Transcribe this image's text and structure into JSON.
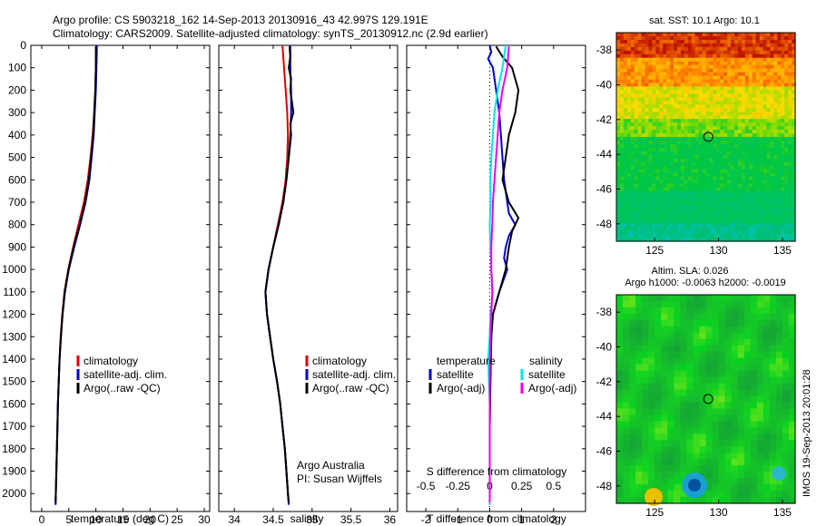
{
  "header": {
    "line1": "Argo profile: CS 5903218_162 14-Sep-2013 20130916_43 42.997S 129.191E",
    "line2": "Climatology: CARS2009. Satellite-adjusted climatology: synTS_20130912.nc (2.9d earlier)"
  },
  "colors": {
    "climatology": "#dd0000",
    "satellite": "#0000cc",
    "argo": "#000000",
    "cyan": "#00e5ee",
    "magenta": "#ee00ee"
  },
  "chart_data": [
    {
      "type": "line",
      "id": "temperature",
      "xlabel": "temperature (deg C)",
      "ylabel": "",
      "xlim": [
        -2,
        31
      ],
      "ylim": [
        2080,
        0
      ],
      "xticks": [
        0,
        5,
        10,
        15,
        20,
        25,
        30
      ],
      "yticks": [
        0,
        100,
        200,
        300,
        400,
        500,
        600,
        700,
        800,
        900,
        1000,
        1100,
        1200,
        1300,
        1400,
        1500,
        1600,
        1700,
        1800,
        1900,
        2000
      ],
      "legend": [
        "climatology",
        "satellite-adj. clim.",
        "Argo(..raw -QC)"
      ],
      "series": [
        {
          "name": "climatology",
          "color": "#dd0000",
          "points": [
            [
              10.1,
              0
            ],
            [
              10.0,
              100
            ],
            [
              9.9,
              200
            ],
            [
              9.7,
              300
            ],
            [
              9.4,
              400
            ],
            [
              9.0,
              500
            ],
            [
              8.5,
              600
            ],
            [
              7.8,
              700
            ],
            [
              6.8,
              800
            ],
            [
              5.8,
              900
            ],
            [
              4.9,
              1000
            ],
            [
              4.2,
              1100
            ],
            [
              3.8,
              1200
            ],
            [
              3.5,
              1300
            ],
            [
              3.3,
              1400
            ],
            [
              3.15,
              1500
            ],
            [
              3.0,
              1600
            ],
            [
              2.9,
              1700
            ],
            [
              2.8,
              1800
            ],
            [
              2.7,
              1900
            ],
            [
              2.6,
              2000
            ],
            [
              2.55,
              2050
            ]
          ]
        },
        {
          "name": "satellite-adj. clim.",
          "color": "#0000cc",
          "points": [
            [
              10.2,
              0
            ],
            [
              10.1,
              100
            ],
            [
              10.0,
              200
            ],
            [
              9.8,
              300
            ],
            [
              9.6,
              400
            ],
            [
              9.2,
              500
            ],
            [
              8.8,
              600
            ],
            [
              8.1,
              700
            ],
            [
              7.1,
              800
            ],
            [
              6.0,
              900
            ],
            [
              5.0,
              1000
            ],
            [
              4.3,
              1100
            ],
            [
              3.85,
              1200
            ],
            [
              3.55,
              1300
            ],
            [
              3.3,
              1400
            ],
            [
              3.15,
              1500
            ],
            [
              3.0,
              1600
            ],
            [
              2.9,
              1700
            ],
            [
              2.8,
              1800
            ],
            [
              2.7,
              1900
            ],
            [
              2.6,
              2000
            ],
            [
              2.55,
              2050
            ]
          ]
        },
        {
          "name": "Argo(..raw -QC)",
          "color": "#000000",
          "points": [
            [
              10.0,
              5
            ],
            [
              10.0,
              100
            ],
            [
              9.9,
              200
            ],
            [
              9.7,
              300
            ],
            [
              9.5,
              400
            ],
            [
              9.1,
              500
            ],
            [
              8.7,
              600
            ],
            [
              8.0,
              700
            ],
            [
              7.0,
              800
            ],
            [
              5.9,
              900
            ],
            [
              4.95,
              1000
            ],
            [
              4.25,
              1100
            ],
            [
              3.85,
              1200
            ],
            [
              3.55,
              1300
            ],
            [
              3.3,
              1400
            ],
            [
              3.15,
              1500
            ],
            [
              3.0,
              1600
            ],
            [
              2.9,
              1700
            ],
            [
              2.8,
              1800
            ],
            [
              2.7,
              1900
            ],
            [
              2.6,
              2000
            ],
            [
              2.55,
              2040
            ]
          ]
        }
      ]
    },
    {
      "type": "line",
      "id": "salinity",
      "xlabel": "salinity",
      "ylabel": "",
      "xlim": [
        33.8,
        36.1
      ],
      "ylim": [
        2080,
        0
      ],
      "xticks": [
        34,
        34.5,
        35,
        35.5,
        36
      ],
      "legend": [
        "climatology",
        "satellite-adj. clim.",
        "Argo(..raw -QC)"
      ],
      "series": [
        {
          "name": "climatology",
          "color": "#dd0000",
          "points": [
            [
              34.62,
              0
            ],
            [
              34.64,
              100
            ],
            [
              34.66,
              200
            ],
            [
              34.68,
              300
            ],
            [
              34.69,
              400
            ],
            [
              34.68,
              500
            ],
            [
              34.66,
              600
            ],
            [
              34.62,
              700
            ],
            [
              34.56,
              800
            ],
            [
              34.5,
              900
            ],
            [
              34.44,
              1000
            ],
            [
              34.4,
              1100
            ],
            [
              34.42,
              1200
            ],
            [
              34.46,
              1300
            ],
            [
              34.5,
              1400
            ],
            [
              34.55,
              1500
            ],
            [
              34.59,
              1600
            ],
            [
              34.62,
              1700
            ],
            [
              34.65,
              1800
            ],
            [
              34.67,
              1900
            ],
            [
              34.69,
              2000
            ],
            [
              34.7,
              2050
            ]
          ]
        },
        {
          "name": "satellite-adj. clim.",
          "color": "#0000cc",
          "points": [
            [
              34.72,
              0
            ],
            [
              34.72,
              100
            ],
            [
              34.73,
              200
            ],
            [
              34.73,
              300
            ],
            [
              34.72,
              400
            ],
            [
              34.7,
              500
            ],
            [
              34.67,
              600
            ],
            [
              34.63,
              700
            ],
            [
              34.57,
              800
            ],
            [
              34.5,
              900
            ],
            [
              34.44,
              1000
            ],
            [
              34.4,
              1100
            ],
            [
              34.42,
              1200
            ],
            [
              34.46,
              1300
            ],
            [
              34.5,
              1400
            ],
            [
              34.55,
              1500
            ],
            [
              34.59,
              1600
            ],
            [
              34.62,
              1700
            ],
            [
              34.65,
              1800
            ],
            [
              34.67,
              1900
            ],
            [
              34.69,
              2000
            ],
            [
              34.7,
              2050
            ]
          ]
        },
        {
          "name": "Argo(..raw -QC)",
          "color": "#000000",
          "points": [
            [
              34.71,
              5
            ],
            [
              34.72,
              50
            ],
            [
              34.7,
              100
            ],
            [
              34.73,
              150
            ],
            [
              34.72,
              200
            ],
            [
              34.74,
              250
            ],
            [
              34.76,
              300
            ],
            [
              34.72,
              350
            ],
            [
              34.73,
              400
            ],
            [
              34.7,
              500
            ],
            [
              34.67,
              600
            ],
            [
              34.63,
              700
            ],
            [
              34.57,
              800
            ],
            [
              34.5,
              900
            ],
            [
              34.44,
              1000
            ],
            [
              34.4,
              1100
            ],
            [
              34.42,
              1200
            ],
            [
              34.46,
              1300
            ],
            [
              34.5,
              1400
            ],
            [
              34.55,
              1500
            ],
            [
              34.59,
              1600
            ],
            [
              34.62,
              1700
            ],
            [
              34.65,
              1800
            ],
            [
              34.67,
              1900
            ],
            [
              34.69,
              2000
            ],
            [
              34.7,
              2040
            ]
          ]
        }
      ]
    },
    {
      "type": "line",
      "id": "difference",
      "xlabel": "T difference from climatology",
      "xlabel2": "S difference from climatology",
      "xlim": [
        -2.6,
        3.0
      ],
      "ylim": [
        2080,
        0
      ],
      "xticks": [
        -2,
        -1,
        0,
        1,
        2
      ],
      "xticks2": [
        -0.5,
        -0.25,
        0,
        0.25,
        0.5
      ],
      "legend_left_title": "temperature",
      "legend_right_title": "salinity",
      "legend_left": [
        "satellite",
        "Argo(-adj)"
      ],
      "legend_right": [
        "satellite",
        "Argo(-adj)"
      ],
      "series": [
        {
          "name": "temperature satellite",
          "color": "#0000cc",
          "points": [
            [
              0.0,
              0
            ],
            [
              0.05,
              30
            ],
            [
              -0.05,
              60
            ],
            [
              0.1,
              100
            ],
            [
              0.2,
              200
            ],
            [
              0.3,
              300
            ],
            [
              0.35,
              400
            ],
            [
              0.4,
              500
            ],
            [
              0.45,
              600
            ],
            [
              0.55,
              700
            ],
            [
              0.6,
              750
            ],
            [
              0.8,
              800
            ],
            [
              0.6,
              850
            ],
            [
              0.5,
              900
            ],
            [
              0.45,
              950
            ],
            [
              0.55,
              1000
            ],
            [
              0.3,
              1100
            ],
            [
              0.1,
              1200
            ],
            [
              0.05,
              1300
            ],
            [
              0.02,
              1500
            ],
            [
              0.0,
              1700
            ],
            [
              0.0,
              2050
            ]
          ]
        },
        {
          "name": "temperature Argo(-adj)",
          "color": "#000000",
          "points": [
            [
              0.2,
              5
            ],
            [
              0.4,
              50
            ],
            [
              0.7,
              100
            ],
            [
              0.9,
              200
            ],
            [
              0.8,
              300
            ],
            [
              0.6,
              400
            ],
            [
              0.5,
              500
            ],
            [
              0.4,
              600
            ],
            [
              0.6,
              700
            ],
            [
              0.9,
              770
            ],
            [
              0.7,
              830
            ],
            [
              0.6,
              900
            ],
            [
              0.5,
              1000
            ],
            [
              0.3,
              1100
            ],
            [
              0.1,
              1200
            ],
            [
              0.05,
              1300
            ],
            [
              0.02,
              1500
            ],
            [
              0.0,
              1700
            ],
            [
              0.0,
              2040
            ]
          ]
        },
        {
          "name": "salinity satellite",
          "color": "#00e5ee",
          "points": [
            [
              0.5,
              0
            ],
            [
              0.4,
              100
            ],
            [
              0.25,
              200
            ],
            [
              0.15,
              300
            ],
            [
              0.1,
              400
            ],
            [
              0.05,
              500
            ],
            [
              0.02,
              600
            ],
            [
              0.03,
              700
            ],
            [
              0.0,
              800
            ],
            [
              0.02,
              900
            ],
            [
              0.05,
              1000
            ],
            [
              0.1,
              1100
            ],
            [
              0.02,
              1200
            ],
            [
              0.0,
              1300
            ],
            [
              -0.05,
              1400
            ],
            [
              0.0,
              1600
            ],
            [
              0.0,
              2050
            ]
          ]
        },
        {
          "name": "salinity Argo(-adj)",
          "color": "#ee00ee",
          "points": [
            [
              0.6,
              5
            ],
            [
              0.55,
              100
            ],
            [
              0.4,
              200
            ],
            [
              0.3,
              300
            ],
            [
              0.25,
              400
            ],
            [
              0.2,
              500
            ],
            [
              0.15,
              600
            ],
            [
              0.1,
              700
            ],
            [
              0.08,
              800
            ],
            [
              0.05,
              900
            ],
            [
              0.05,
              1000
            ],
            [
              0.08,
              1100
            ],
            [
              0.05,
              1200
            ],
            [
              0.02,
              1300
            ],
            [
              0.0,
              1500
            ],
            [
              0.0,
              2040
            ]
          ]
        }
      ]
    },
    {
      "type": "heatmap",
      "id": "sst",
      "title": "sat. SST: 10.1 Argo: 10.1",
      "xlim": [
        122,
        136
      ],
      "ylim": [
        -49,
        -37
      ],
      "xticks": [
        125,
        130,
        135
      ],
      "yticks": [
        -38,
        -40,
        -42,
        -44,
        -46,
        -48
      ],
      "marker": [
        129.191,
        -42.997
      ]
    },
    {
      "type": "heatmap",
      "id": "sla",
      "title": "Altim. SLA: 0.026",
      "subtitle": "Argo h1000: -0.0063 h2000: -0.0019",
      "xlim": [
        122,
        136
      ],
      "ylim": [
        -49,
        -37
      ],
      "xticks": [
        125,
        130,
        135
      ],
      "yticks": [
        -38,
        -40,
        -42,
        -44,
        -46,
        -48
      ],
      "marker": [
        129.191,
        -42.997
      ]
    }
  ],
  "annotations": {
    "operator": "Argo Australia",
    "pi": "PI: Susan Wijffels",
    "imos": "IMOS 19-Sep-2013 20:01:28"
  }
}
